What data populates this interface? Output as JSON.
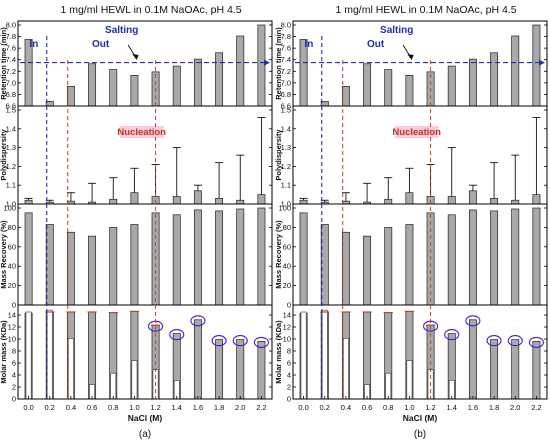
{
  "figure": {
    "panel_title": "1 mg/ml HEWL in 0.1M NaOAc, pH 4.5",
    "panel_labels": [
      "(a)",
      "(b)"
    ],
    "xlabel": "NaCl (M)",
    "x_ticks": [
      "0.0",
      "0.2",
      "0.4",
      "0.6",
      "0.8",
      "1.0",
      "1.2",
      "1.4",
      "1.6",
      "1.8",
      "2.0",
      "2.2"
    ],
    "annotations": {
      "salting": "Salting",
      "in": "In",
      "out": "Out",
      "nucleation": "Nucleation"
    },
    "colors": {
      "bar": "#a9a9a9",
      "blue_dash": "#1f2fa8",
      "red_dash": "#b5482a",
      "circle": "#3a1fd6",
      "highlight": "#ffc8dc"
    }
  },
  "chart_data": {
    "type": "bar",
    "x": [
      0.0,
      0.2,
      0.4,
      0.6,
      0.8,
      1.0,
      1.2,
      1.4,
      1.6,
      1.8,
      2.0,
      2.2
    ],
    "subplots": [
      {
        "key": "retention",
        "ylabel": "Retention time (min)",
        "ylim": [
          6.6,
          8.0
        ],
        "yticks": [
          "6.6",
          "6.8",
          "7.0",
          "7.2",
          "7.4",
          "7.6",
          "7.8",
          "8.0"
        ],
        "values": [
          7.75,
          6.68,
          6.94,
          7.33,
          7.23,
          7.13,
          7.19,
          7.29,
          7.41,
          7.52,
          7.81,
          8.0
        ]
      },
      {
        "key": "polydispersity",
        "ylabel": "Polydispersity",
        "ylim": [
          1.0,
          1.5
        ],
        "yticks": [
          "1.0",
          "1.1",
          "1.2",
          "1.3",
          "1.4",
          "1.5"
        ],
        "values": [
          1.02,
          1.01,
          1.015,
          1.01,
          1.025,
          1.06,
          1.04,
          1.04,
          1.07,
          1.03,
          1.02,
          1.05
        ],
        "upper_error": [
          1.03,
          1.02,
          1.06,
          1.11,
          1.14,
          1.19,
          1.21,
          1.3,
          1.1,
          1.22,
          1.26,
          1.46
        ]
      },
      {
        "key": "mass_recovery",
        "ylabel": "Mass Recovery (%)",
        "ylim": [
          0,
          100
        ],
        "yticks": [
          "0",
          "20",
          "40",
          "60",
          "80",
          "100"
        ],
        "values": [
          95,
          83,
          75,
          71,
          80,
          83,
          95,
          93,
          98,
          97,
          99,
          100
        ]
      },
      {
        "key": "molar_mass",
        "ylabel": "Molar mass (KDa)",
        "ylim": [
          0,
          15
        ],
        "yticks": [
          "0",
          "2",
          "4",
          "6",
          "8",
          "10",
          "12",
          "14"
        ],
        "values": [
          14.3,
          14.5,
          14.5,
          14.5,
          14.4,
          14.6,
          12.3,
          10.9,
          13.2,
          9.9,
          9.9,
          9.6
        ],
        "inner_values": [
          14.5,
          14.8,
          10.1,
          2.4,
          4.3,
          6.4,
          4.9,
          3.1,
          0.3,
          0,
          0,
          0
        ]
      }
    ]
  }
}
